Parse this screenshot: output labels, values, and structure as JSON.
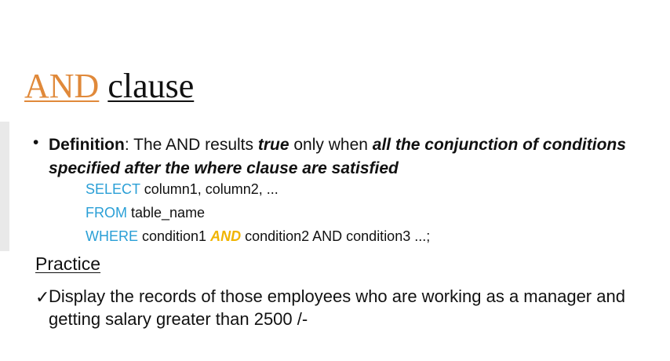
{
  "title": {
    "keyword": "AND",
    "rest": "clause"
  },
  "definition": {
    "bullet": "•",
    "label": "Definition",
    "colon": ":",
    "text1": " The AND results ",
    "emph1": "true",
    "text2": " only when ",
    "emph2": "all the conjunction of conditions specified after the where clause are satisfied"
  },
  "sql": {
    "line1_kw": "SELECT",
    "line1_rest": " column1, column2, ...",
    "line2_kw": "FROM",
    "line2_rest": " table_name",
    "line3_kw": "WHERE",
    "line3_mid": " condition1 ",
    "line3_and": "AND",
    "line3_rest": " condition2 AND condition3 ...;"
  },
  "practice": {
    "heading": "Practice",
    "check": "✓",
    "task": "Display the records of those employees who are working as a manager and getting salary greater than 2500 /-"
  }
}
